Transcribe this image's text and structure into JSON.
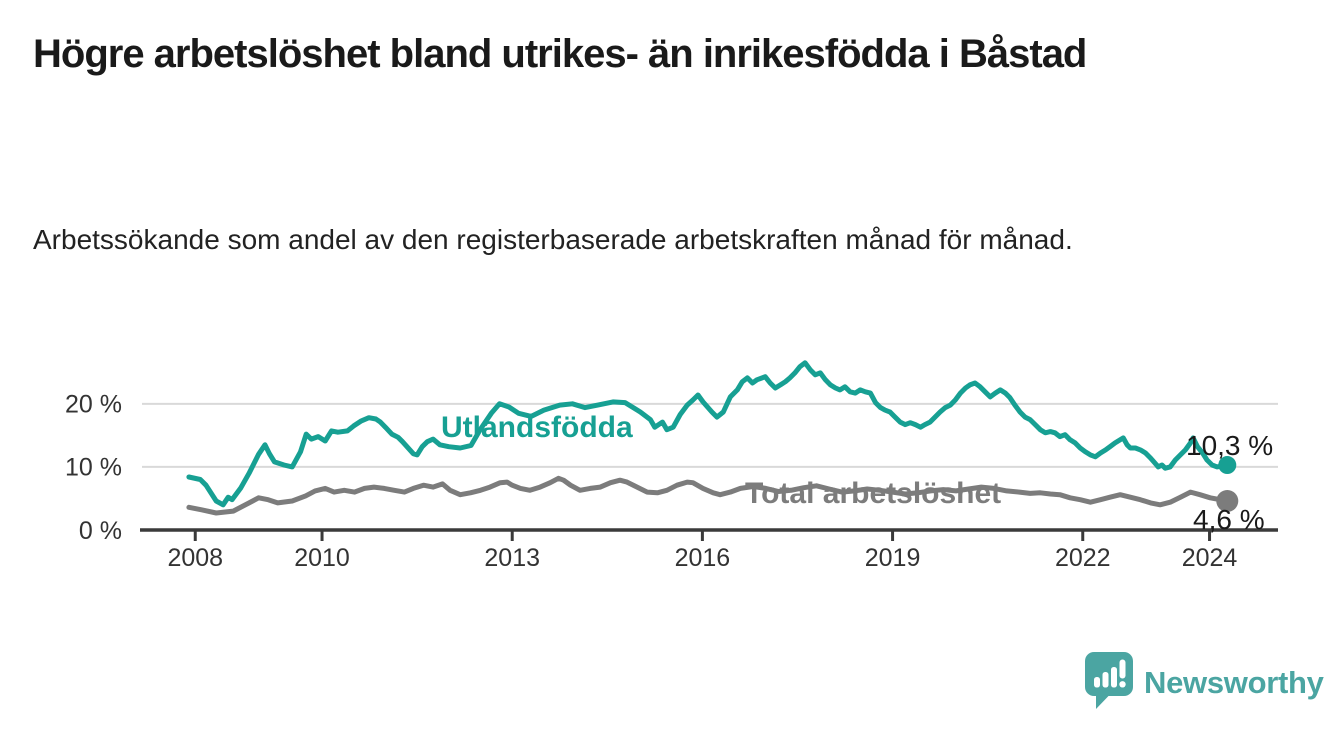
{
  "header": {
    "title": "Högre arbetslöshet bland utrikes- än inrikesfödda i Båstad",
    "subtitle": "Arbetssökande som andel av den registerbaserade arbetskraften månad för månad."
  },
  "colors": {
    "title": "#1a1a1a",
    "subtitle": "#222222",
    "axis": "#3a3a3a",
    "tick_label": "#333333",
    "gridline": "#d9d9d9",
    "series_foreign_born": "#17a093",
    "series_total": "#7c7c7c",
    "end_label": "#1a1a1a",
    "brand_teal": "#4ba5a2"
  },
  "footer": {
    "brand": "Newsworthy",
    "logo_icon": "speech-bubble-bar-chart-exclamation"
  },
  "chart_data": {
    "type": "line",
    "title": "Högre arbetslöshet bland utrikes- än inrikesfödda i Båstad",
    "subtitle": "Arbetssökande som andel av den registerbaserade arbetskraften månad för månad.",
    "grid": "horizontal-only",
    "legend_position": "inline-labels-on-lines",
    "x_axis": {
      "range": [
        2007.16,
        2025.08
      ],
      "ticks": [
        2008,
        2010,
        2013,
        2016,
        2019,
        2022,
        2024
      ],
      "tick_labels": [
        "2008",
        "2010",
        "2013",
        "2016",
        "2019",
        "2022",
        "2024"
      ]
    },
    "y_axis": {
      "unit": "%",
      "range": [
        0,
        31.7
      ],
      "ticks": [
        0,
        10,
        20
      ],
      "tick_labels": [
        "0 %",
        "10 %",
        "20 %"
      ]
    },
    "series": [
      {
        "name": "Total arbetslöshet",
        "color": "#7c7c7c",
        "end_value": 4.6,
        "end_label": "4,6 %",
        "points": [
          [
            2007.9,
            3.6
          ],
          [
            2008.1,
            3.2
          ],
          [
            2008.33,
            2.7
          ],
          [
            2008.6,
            3.0
          ],
          [
            2008.85,
            4.3
          ],
          [
            2009.0,
            5.1
          ],
          [
            2009.15,
            4.8
          ],
          [
            2009.3,
            4.3
          ],
          [
            2009.53,
            4.6
          ],
          [
            2009.74,
            5.4
          ],
          [
            2009.89,
            6.2
          ],
          [
            2010.05,
            6.6
          ],
          [
            2010.19,
            6.0
          ],
          [
            2010.35,
            6.3
          ],
          [
            2010.51,
            6.0
          ],
          [
            2010.67,
            6.6
          ],
          [
            2010.82,
            6.8
          ],
          [
            2010.98,
            6.6
          ],
          [
            2011.14,
            6.3
          ],
          [
            2011.3,
            6.0
          ],
          [
            2011.44,
            6.6
          ],
          [
            2011.6,
            7.1
          ],
          [
            2011.75,
            6.8
          ],
          [
            2011.9,
            7.3
          ],
          [
            2012.02,
            6.3
          ],
          [
            2012.18,
            5.6
          ],
          [
            2012.34,
            5.9
          ],
          [
            2012.5,
            6.3
          ],
          [
            2012.65,
            6.8
          ],
          [
            2012.81,
            7.5
          ],
          [
            2012.92,
            7.6
          ],
          [
            2013.0,
            7.1
          ],
          [
            2013.13,
            6.6
          ],
          [
            2013.28,
            6.3
          ],
          [
            2013.44,
            6.8
          ],
          [
            2013.6,
            7.5
          ],
          [
            2013.73,
            8.2
          ],
          [
            2013.81,
            7.9
          ],
          [
            2013.92,
            7.1
          ],
          [
            2014.07,
            6.3
          ],
          [
            2014.23,
            6.6
          ],
          [
            2014.39,
            6.8
          ],
          [
            2014.55,
            7.5
          ],
          [
            2014.7,
            7.9
          ],
          [
            2014.81,
            7.6
          ],
          [
            2014.97,
            6.8
          ],
          [
            2015.13,
            6.0
          ],
          [
            2015.29,
            5.9
          ],
          [
            2015.44,
            6.3
          ],
          [
            2015.6,
            7.1
          ],
          [
            2015.76,
            7.6
          ],
          [
            2015.85,
            7.5
          ],
          [
            2016.01,
            6.6
          ],
          [
            2016.17,
            5.9
          ],
          [
            2016.28,
            5.6
          ],
          [
            2016.44,
            6.0
          ],
          [
            2016.6,
            6.6
          ],
          [
            2016.8,
            6.9
          ],
          [
            2017.0,
            6.6
          ],
          [
            2017.2,
            6.1
          ],
          [
            2017.4,
            6.3
          ],
          [
            2017.6,
            6.7
          ],
          [
            2017.8,
            7.0
          ],
          [
            2018.0,
            6.5
          ],
          [
            2018.2,
            6.0
          ],
          [
            2018.4,
            6.2
          ],
          [
            2018.6,
            6.5
          ],
          [
            2018.8,
            6.3
          ],
          [
            2019.0,
            6.0
          ],
          [
            2019.2,
            5.7
          ],
          [
            2019.4,
            5.9
          ],
          [
            2019.6,
            6.2
          ],
          [
            2019.8,
            6.4
          ],
          [
            2020.0,
            6.2
          ],
          [
            2020.2,
            6.5
          ],
          [
            2020.4,
            6.8
          ],
          [
            2020.6,
            6.6
          ],
          [
            2020.8,
            6.2
          ],
          [
            2021.0,
            6.0
          ],
          [
            2021.17,
            5.8
          ],
          [
            2021.33,
            5.9
          ],
          [
            2021.49,
            5.7
          ],
          [
            2021.64,
            5.6
          ],
          [
            2021.8,
            5.1
          ],
          [
            2021.96,
            4.8
          ],
          [
            2022.12,
            4.4
          ],
          [
            2022.28,
            4.8
          ],
          [
            2022.43,
            5.2
          ],
          [
            2022.59,
            5.6
          ],
          [
            2022.75,
            5.2
          ],
          [
            2022.91,
            4.8
          ],
          [
            2023.07,
            4.3
          ],
          [
            2023.22,
            4.0
          ],
          [
            2023.38,
            4.4
          ],
          [
            2023.54,
            5.2
          ],
          [
            2023.7,
            6.0
          ],
          [
            2023.85,
            5.6
          ],
          [
            2024.01,
            5.1
          ],
          [
            2024.28,
            4.6
          ]
        ]
      },
      {
        "name": "Utlandsfödda",
        "color": "#17a093",
        "end_value": 10.3,
        "end_label": "10,3 %",
        "points": [
          [
            2007.9,
            8.4
          ],
          [
            2008.08,
            8.0
          ],
          [
            2008.17,
            7.1
          ],
          [
            2008.33,
            4.6
          ],
          [
            2008.44,
            4.0
          ],
          [
            2008.52,
            5.2
          ],
          [
            2008.58,
            4.8
          ],
          [
            2008.72,
            6.7
          ],
          [
            2008.85,
            9.0
          ],
          [
            2009.0,
            12.0
          ],
          [
            2009.1,
            13.5
          ],
          [
            2009.17,
            12.1
          ],
          [
            2009.25,
            10.8
          ],
          [
            2009.4,
            10.3
          ],
          [
            2009.53,
            10.0
          ],
          [
            2009.66,
            12.4
          ],
          [
            2009.75,
            15.2
          ],
          [
            2009.83,
            14.4
          ],
          [
            2009.94,
            14.8
          ],
          [
            2010.05,
            14.1
          ],
          [
            2010.15,
            15.7
          ],
          [
            2010.25,
            15.5
          ],
          [
            2010.4,
            15.7
          ],
          [
            2010.5,
            16.5
          ],
          [
            2010.62,
            17.3
          ],
          [
            2010.74,
            17.8
          ],
          [
            2010.85,
            17.6
          ],
          [
            2010.92,
            17.1
          ],
          [
            2011.0,
            16.3
          ],
          [
            2011.1,
            15.2
          ],
          [
            2011.2,
            14.7
          ],
          [
            2011.27,
            14.0
          ],
          [
            2011.34,
            13.2
          ],
          [
            2011.44,
            12.1
          ],
          [
            2011.5,
            11.9
          ],
          [
            2011.58,
            13.2
          ],
          [
            2011.66,
            14.0
          ],
          [
            2011.75,
            14.4
          ],
          [
            2011.86,
            13.5
          ],
          [
            2012.0,
            13.2
          ],
          [
            2012.18,
            13.0
          ],
          [
            2012.35,
            13.4
          ],
          [
            2012.5,
            16.0
          ],
          [
            2012.67,
            18.5
          ],
          [
            2012.8,
            20.0
          ],
          [
            2012.95,
            19.5
          ],
          [
            2013.1,
            18.5
          ],
          [
            2013.3,
            18.0
          ],
          [
            2013.5,
            19.0
          ],
          [
            2013.75,
            19.8
          ],
          [
            2013.95,
            20.0
          ],
          [
            2014.15,
            19.4
          ],
          [
            2014.35,
            19.8
          ],
          [
            2014.59,
            20.3
          ],
          [
            2014.78,
            20.2
          ],
          [
            2015.02,
            18.7
          ],
          [
            2015.18,
            17.5
          ],
          [
            2015.25,
            16.3
          ],
          [
            2015.37,
            17.1
          ],
          [
            2015.44,
            15.9
          ],
          [
            2015.54,
            16.3
          ],
          [
            2015.65,
            18.3
          ],
          [
            2015.76,
            19.8
          ],
          [
            2015.85,
            20.6
          ],
          [
            2015.93,
            21.4
          ],
          [
            2016.01,
            20.3
          ],
          [
            2016.15,
            18.7
          ],
          [
            2016.23,
            17.9
          ],
          [
            2016.33,
            18.7
          ],
          [
            2016.44,
            21.1
          ],
          [
            2016.55,
            22.2
          ],
          [
            2016.63,
            23.5
          ],
          [
            2016.71,
            24.1
          ],
          [
            2016.79,
            23.3
          ],
          [
            2016.86,
            23.8
          ],
          [
            2016.99,
            24.3
          ],
          [
            2017.07,
            23.3
          ],
          [
            2017.15,
            22.5
          ],
          [
            2017.23,
            23.0
          ],
          [
            2017.31,
            23.5
          ],
          [
            2017.38,
            24.1
          ],
          [
            2017.46,
            24.9
          ],
          [
            2017.54,
            25.9
          ],
          [
            2017.62,
            26.5
          ],
          [
            2017.7,
            25.4
          ],
          [
            2017.78,
            24.6
          ],
          [
            2017.86,
            24.9
          ],
          [
            2017.94,
            23.8
          ],
          [
            2018.02,
            23.0
          ],
          [
            2018.1,
            22.5
          ],
          [
            2018.17,
            22.2
          ],
          [
            2018.25,
            22.7
          ],
          [
            2018.33,
            21.9
          ],
          [
            2018.41,
            21.7
          ],
          [
            2018.49,
            22.2
          ],
          [
            2018.57,
            21.9
          ],
          [
            2018.65,
            21.7
          ],
          [
            2018.73,
            20.2
          ],
          [
            2018.81,
            19.4
          ],
          [
            2018.88,
            19.0
          ],
          [
            2018.96,
            18.7
          ],
          [
            2019.04,
            17.9
          ],
          [
            2019.12,
            17.1
          ],
          [
            2019.2,
            16.7
          ],
          [
            2019.28,
            17.0
          ],
          [
            2019.36,
            16.7
          ],
          [
            2019.44,
            16.3
          ],
          [
            2019.51,
            16.7
          ],
          [
            2019.59,
            17.1
          ],
          [
            2019.67,
            17.9
          ],
          [
            2019.75,
            18.7
          ],
          [
            2019.83,
            19.4
          ],
          [
            2019.91,
            19.8
          ],
          [
            2019.99,
            20.6
          ],
          [
            2020.07,
            21.7
          ],
          [
            2020.15,
            22.5
          ],
          [
            2020.22,
            23.0
          ],
          [
            2020.3,
            23.3
          ],
          [
            2020.38,
            22.7
          ],
          [
            2020.46,
            21.9
          ],
          [
            2020.54,
            21.1
          ],
          [
            2020.62,
            21.7
          ],
          [
            2020.7,
            22.2
          ],
          [
            2020.78,
            21.7
          ],
          [
            2020.85,
            21.0
          ],
          [
            2020.93,
            19.8
          ],
          [
            2021.01,
            18.7
          ],
          [
            2021.09,
            17.9
          ],
          [
            2021.17,
            17.5
          ],
          [
            2021.25,
            16.7
          ],
          [
            2021.33,
            15.9
          ],
          [
            2021.41,
            15.4
          ],
          [
            2021.49,
            15.6
          ],
          [
            2021.56,
            15.4
          ],
          [
            2021.64,
            14.8
          ],
          [
            2021.72,
            15.1
          ],
          [
            2021.8,
            14.3
          ],
          [
            2021.88,
            13.8
          ],
          [
            2021.96,
            13.0
          ],
          [
            2022.04,
            12.4
          ],
          [
            2022.12,
            11.9
          ],
          [
            2022.2,
            11.6
          ],
          [
            2022.28,
            12.2
          ],
          [
            2022.36,
            12.7
          ],
          [
            2022.43,
            13.2
          ],
          [
            2022.51,
            13.8
          ],
          [
            2022.59,
            14.3
          ],
          [
            2022.64,
            14.6
          ],
          [
            2022.7,
            13.5
          ],
          [
            2022.75,
            13.0
          ],
          [
            2022.83,
            13.0
          ],
          [
            2022.91,
            12.7
          ],
          [
            2022.99,
            12.2
          ],
          [
            2023.07,
            11.4
          ],
          [
            2023.14,
            10.6
          ],
          [
            2023.19,
            10.0
          ],
          [
            2023.25,
            10.3
          ],
          [
            2023.3,
            9.8
          ],
          [
            2023.38,
            10.0
          ],
          [
            2023.46,
            11.1
          ],
          [
            2023.54,
            11.9
          ],
          [
            2023.62,
            12.7
          ],
          [
            2023.7,
            13.8
          ],
          [
            2023.74,
            14.6
          ],
          [
            2023.81,
            13.2
          ],
          [
            2023.89,
            12.2
          ],
          [
            2023.96,
            11.1
          ],
          [
            2024.04,
            10.3
          ],
          [
            2024.12,
            10.0
          ],
          [
            2024.28,
            10.3
          ]
        ]
      }
    ]
  }
}
